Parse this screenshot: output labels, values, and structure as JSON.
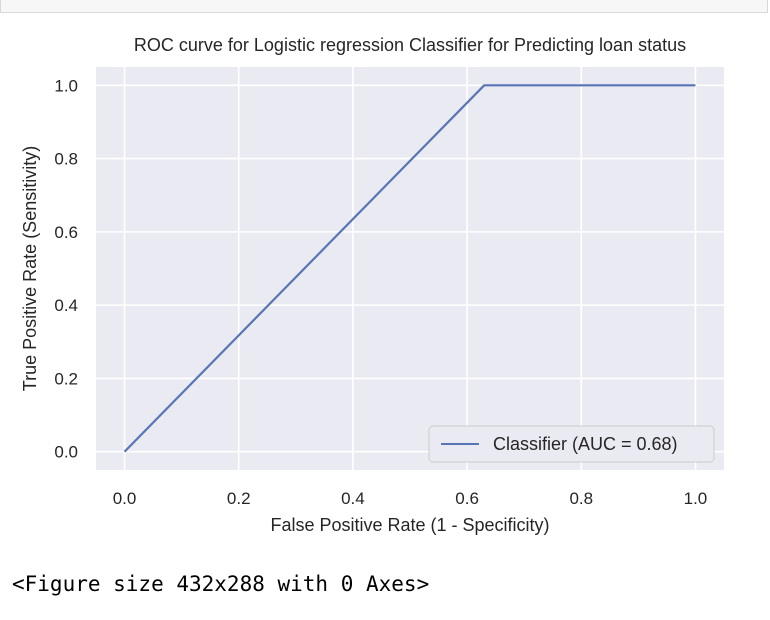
{
  "chart_data": {
    "type": "line",
    "title": "ROC curve for Logistic regression Classifier for Predicting loan status",
    "xlabel": "False Positive Rate (1 - Specificity)",
    "ylabel": "True Positive Rate (Sensitivity)",
    "xlim": [
      -0.05,
      1.05
    ],
    "ylim": [
      -0.05,
      1.05
    ],
    "xticks": [
      "0.0",
      "0.2",
      "0.4",
      "0.6",
      "0.8",
      "1.0"
    ],
    "yticks": [
      "0.0",
      "0.2",
      "0.4",
      "0.6",
      "0.8",
      "1.0"
    ],
    "grid": true,
    "legend_position": "lower-right",
    "series": [
      {
        "name": "Classifier (AUC = 0.68)",
        "color": "#5875b5",
        "x": [
          0.0,
          0.63,
          1.0
        ],
        "y": [
          0.0,
          1.0,
          1.0
        ]
      }
    ]
  },
  "output": {
    "text": "<Figure size 432x288 with 0 Axes>"
  }
}
